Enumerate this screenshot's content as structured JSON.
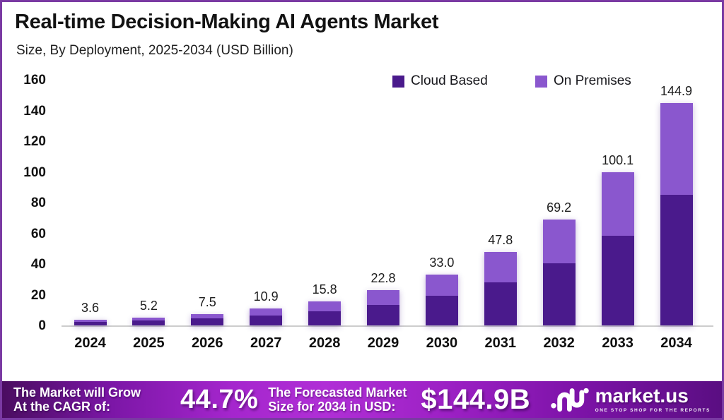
{
  "frame": {
    "border_color": "#7a3aa3",
    "background": "#ffffff"
  },
  "header": {
    "title": "Real-time Decision-Making AI Agents Market",
    "subtitle": "Size, By Deployment, 2025-2034 (USD Billion)"
  },
  "chart_data": {
    "type": "bar",
    "stacked": true,
    "title": "Real-time Decision-Making AI Agents Market Size, By Deployment, 2025-2034 (USD Billion)",
    "categories": [
      "2024",
      "2025",
      "2026",
      "2027",
      "2028",
      "2029",
      "2030",
      "2031",
      "2032",
      "2033",
      "2034"
    ],
    "series": [
      {
        "name": "Cloud Based",
        "color": "#4A1A8C",
        "values": [
          2.1,
          3.0,
          4.4,
          6.4,
          9.2,
          13.3,
          19.3,
          28.0,
          40.3,
          58.6,
          85.3
        ]
      },
      {
        "name": "On Premises",
        "color": "#8A57CE",
        "values": [
          1.5,
          2.2,
          3.1,
          4.5,
          6.6,
          9.5,
          13.7,
          19.8,
          28.9,
          41.5,
          59.6
        ]
      }
    ],
    "totals": [
      3.6,
      5.2,
      7.5,
      10.9,
      15.8,
      22.8,
      33.0,
      47.8,
      69.2,
      100.1,
      144.9
    ],
    "total_labels": [
      "3.6",
      "5.2",
      "7.5",
      "10.9",
      "15.8",
      "22.8",
      "33.0",
      "47.8",
      "69.2",
      "100.1",
      "144.9"
    ],
    "xlabel": "",
    "ylabel": "",
    "ylim": [
      0,
      160
    ],
    "yticks": [
      0,
      20,
      40,
      60,
      80,
      100,
      120,
      140,
      160
    ],
    "grid": false,
    "legend_position": "top-right",
    "baseline_color": "#cdcdcd"
  },
  "footer": {
    "cagr_line1": "The Market will Grow",
    "cagr_line2": "At the CAGR of:",
    "cagr_value": "44.7%",
    "forecast_line1": "The Forecasted Market",
    "forecast_line2": "Size for 2034 in USD:",
    "forecast_value": "$144.9B",
    "logo_name": "market.us",
    "logo_tagline": "ONE STOP SHOP FOR THE REPORTS",
    "gradient": [
      "#4a0d60",
      "#b02fd6",
      "#5a0e82"
    ]
  }
}
